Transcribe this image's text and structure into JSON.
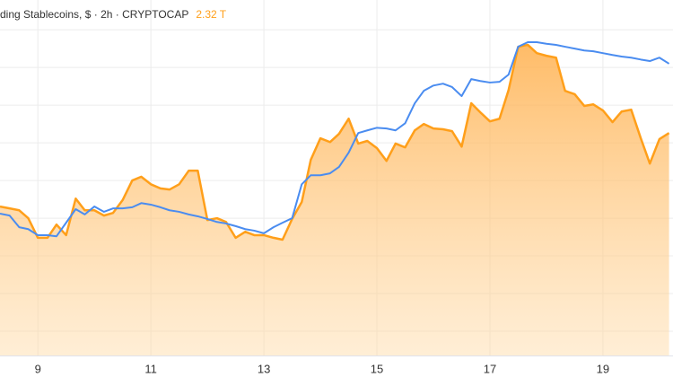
{
  "chart_data": {
    "type": "area-line",
    "title": "ding Stablecoins, $ · 2h · CRYPTOCAP",
    "last_value": "2.32 T",
    "x": [
      8.33,
      8.5,
      8.67,
      8.83,
      9,
      9.17,
      9.33,
      9.5,
      9.67,
      9.83,
      10,
      10.17,
      10.33,
      10.5,
      10.67,
      10.83,
      11,
      11.17,
      11.33,
      11.5,
      11.67,
      11.83,
      12,
      12.17,
      12.33,
      12.5,
      12.67,
      12.83,
      13,
      13.17,
      13.33,
      13.5,
      13.67,
      13.83,
      14,
      14.17,
      14.33,
      14.5,
      14.67,
      14.83,
      15,
      15.17,
      15.33,
      15.5,
      15.67,
      15.83,
      16,
      16.17,
      16.33,
      16.5,
      16.67,
      16.83,
      17,
      17.17,
      17.33,
      17.5,
      17.67,
      17.83,
      18,
      18.17,
      18.33,
      18.5,
      18.67,
      18.83,
      19,
      19.17,
      19.33,
      19.5,
      19.67,
      19.83,
      20,
      20.17
    ],
    "series": [
      {
        "color": "#ff9f1a",
        "fill": true,
        "values": [
          4.31,
          4.26,
          4.21,
          4.0,
          3.48,
          3.48,
          3.83,
          3.55,
          4.52,
          4.21,
          4.21,
          4.07,
          4.14,
          4.48,
          5.0,
          5.1,
          4.9,
          4.79,
          4.76,
          4.9,
          5.26,
          5.26,
          3.95,
          4.0,
          3.9,
          3.48,
          3.64,
          3.55,
          3.55,
          3.48,
          3.43,
          3.98,
          4.43,
          5.55,
          6.12,
          6.02,
          6.24,
          6.64,
          5.98,
          6.05,
          5.86,
          5.52,
          5.98,
          5.88,
          6.33,
          6.5,
          6.38,
          6.36,
          6.31,
          5.9,
          7.05,
          6.81,
          6.57,
          6.64,
          7.4,
          8.55,
          8.6,
          8.38,
          8.31,
          8.26,
          7.38,
          7.29,
          6.98,
          7.02,
          6.86,
          6.55,
          6.83,
          6.88,
          6.12,
          5.45,
          6.1,
          6.26
        ]
      },
      {
        "color": "#4a8cf0",
        "fill": false,
        "values": [
          4.12,
          4.07,
          3.76,
          3.71,
          3.55,
          3.55,
          3.52,
          3.88,
          4.24,
          4.1,
          4.31,
          4.17,
          4.26,
          4.26,
          4.29,
          4.4,
          4.36,
          4.29,
          4.21,
          4.17,
          4.1,
          4.05,
          3.98,
          3.9,
          3.86,
          3.79,
          3.71,
          3.67,
          3.6,
          3.76,
          3.88,
          4.0,
          4.9,
          5.14,
          5.14,
          5.19,
          5.36,
          5.74,
          6.26,
          6.33,
          6.4,
          6.38,
          6.33,
          6.52,
          7.05,
          7.38,
          7.52,
          7.57,
          7.48,
          7.24,
          7.69,
          7.64,
          7.6,
          7.62,
          7.81,
          8.55,
          8.67,
          8.67,
          8.63,
          8.6,
          8.55,
          8.5,
          8.45,
          8.43,
          8.38,
          8.33,
          8.29,
          8.26,
          8.21,
          8.17,
          8.26,
          8.1
        ]
      }
    ],
    "xlim": [
      8.33,
      20.24
    ],
    "xticks": [
      9,
      11,
      13,
      15,
      17,
      19
    ],
    "ylim": [
      0,
      9.79
    ],
    "yticks": [
      1,
      2,
      3,
      4,
      5,
      6,
      7,
      8,
      9
    ],
    "grid": true
  }
}
